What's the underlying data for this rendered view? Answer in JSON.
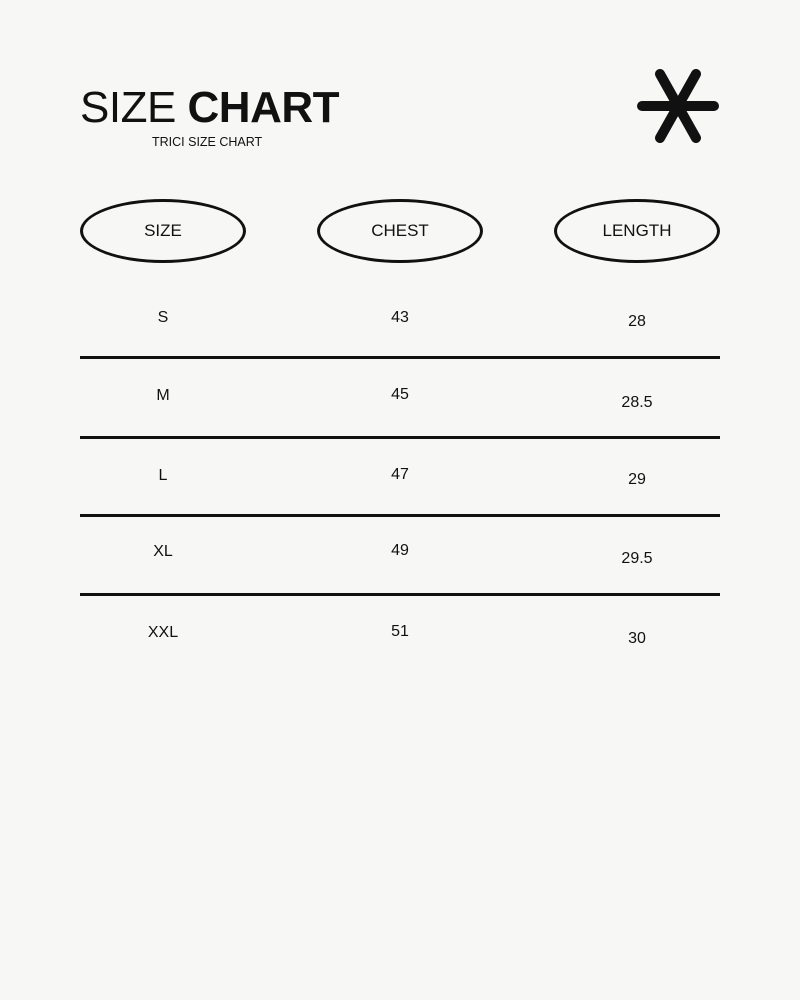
{
  "header": {
    "title_light": "SIZE",
    "title_bold": "CHART",
    "subtitle": "TRICI SIZE CHART",
    "logo_icon": "asterisk-icon"
  },
  "table": {
    "columns": [
      "SIZE",
      "CHEST",
      "LENGTH"
    ],
    "rows": [
      [
        "S",
        "43",
        "28"
      ],
      [
        "M",
        "45",
        "28.5"
      ],
      [
        "L",
        "47",
        "29"
      ],
      [
        "XL",
        "49",
        "29.5"
      ],
      [
        "XXL",
        "51",
        "30"
      ]
    ]
  },
  "colors": {
    "background": "#f7f7f5",
    "ink": "#111111"
  }
}
